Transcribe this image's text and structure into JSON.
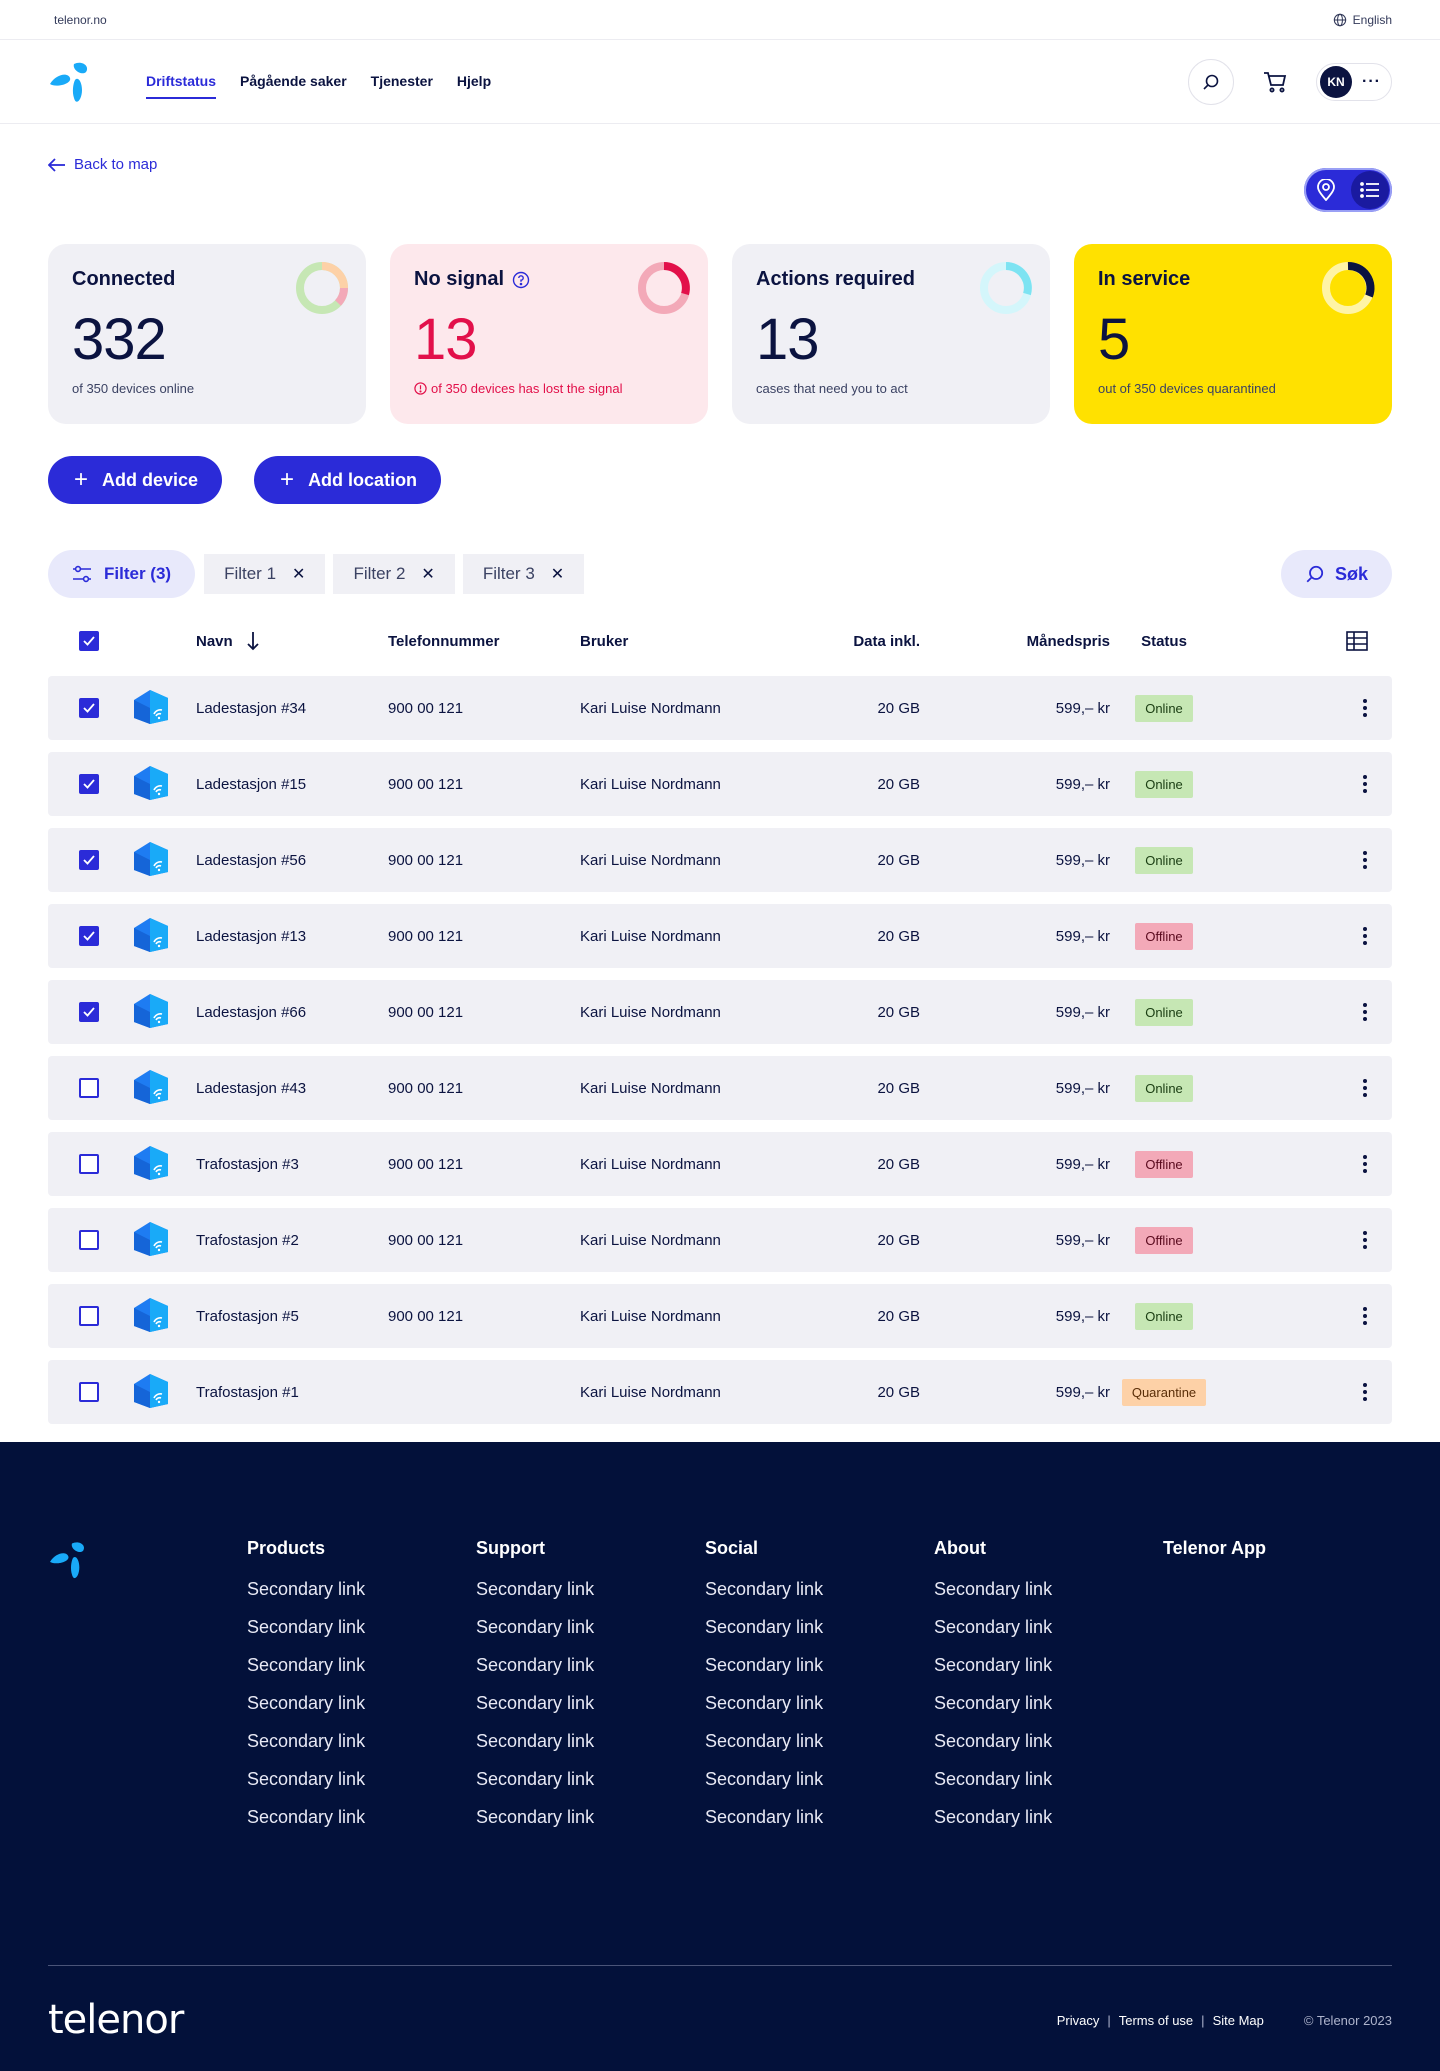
{
  "topbar": {
    "site": "telenor.no",
    "language": "English"
  },
  "nav": {
    "links": [
      "Driftstatus",
      "Pågående saker",
      "Tjenester",
      "Hjelp"
    ],
    "active_index": 0,
    "avatar_initials": "KN",
    "more": "···"
  },
  "back_link": "Back to map",
  "cards": [
    {
      "title": "Connected",
      "value": "332",
      "subtitle": "of 350 devices online",
      "ring": 0.95
    },
    {
      "title": "No signal",
      "value": "13",
      "subtitle": "of 350 devices has lost the signal",
      "ring": 0.3
    },
    {
      "title": "Actions required",
      "value": "13",
      "subtitle": "cases that need you to act",
      "ring": 0.3
    },
    {
      "title": "In service",
      "value": "5",
      "subtitle": "out of 350 devices quarantined",
      "ring": 0.4
    }
  ],
  "buttons": {
    "add_device": "Add device",
    "add_location": "Add location"
  },
  "filters": {
    "main": "Filter (3)",
    "chips": [
      "Filter 1",
      "Filter 2",
      "Filter 3"
    ],
    "search": "Søk"
  },
  "table": {
    "headers": {
      "name": "Navn",
      "phone": "Telefonnummer",
      "user": "Bruker",
      "data": "Data inkl.",
      "price": "Månedspris",
      "status": "Status"
    },
    "rows": [
      {
        "checked": true,
        "name": "Ladestasjon #34",
        "phone": "900 00 121",
        "user": "Kari Luise Nordmann",
        "data": "20 GB",
        "price": "599,– kr",
        "status": "Online"
      },
      {
        "checked": true,
        "name": "Ladestasjon #15",
        "phone": "900 00 121",
        "user": "Kari Luise Nordmann",
        "data": "20 GB",
        "price": "599,– kr",
        "status": "Online"
      },
      {
        "checked": true,
        "name": "Ladestasjon #56",
        "phone": "900 00 121",
        "user": "Kari Luise Nordmann",
        "data": "20 GB",
        "price": "599,– kr",
        "status": "Online"
      },
      {
        "checked": true,
        "name": "Ladestasjon #13",
        "phone": "900 00 121",
        "user": "Kari Luise Nordmann",
        "data": "20 GB",
        "price": "599,– kr",
        "status": "Offline"
      },
      {
        "checked": true,
        "name": "Ladestasjon #66",
        "phone": "900 00 121",
        "user": "Kari Luise Nordmann",
        "data": "20 GB",
        "price": "599,– kr",
        "status": "Online"
      },
      {
        "checked": false,
        "name": "Ladestasjon #43",
        "phone": "900 00 121",
        "user": "Kari Luise Nordmann",
        "data": "20 GB",
        "price": "599,– kr",
        "status": "Online"
      },
      {
        "checked": false,
        "name": "Trafostasjon #3",
        "phone": "900 00 121",
        "user": "Kari Luise Nordmann",
        "data": "20 GB",
        "price": "599,– kr",
        "status": "Offline"
      },
      {
        "checked": false,
        "name": "Trafostasjon #2",
        "phone": "900 00 121",
        "user": "Kari Luise Nordmann",
        "data": "20 GB",
        "price": "599,– kr",
        "status": "Offline"
      },
      {
        "checked": false,
        "name": "Trafostasjon #5",
        "phone": "900 00 121",
        "user": "Kari Luise Nordmann",
        "data": "20 GB",
        "price": "599,– kr",
        "status": "Online"
      },
      {
        "checked": false,
        "name": "Trafostasjon #1",
        "phone": "",
        "user": "Kari Luise Nordmann",
        "data": "20 GB",
        "price": "599,– kr",
        "status": "Quarantine"
      }
    ]
  },
  "footer": {
    "columns": [
      {
        "title": "Products",
        "links": [
          "Secondary link",
          "Secondary link",
          "Secondary link",
          "Secondary link",
          "Secondary link",
          "Secondary link",
          "Secondary link"
        ]
      },
      {
        "title": "Support",
        "links": [
          "Secondary link",
          "Secondary link",
          "Secondary link",
          "Secondary link",
          "Secondary link",
          "Secondary link",
          "Secondary link"
        ]
      },
      {
        "title": "Social",
        "links": [
          "Secondary link",
          "Secondary link",
          "Secondary link",
          "Secondary link",
          "Secondary link",
          "Secondary link",
          "Secondary link"
        ]
      },
      {
        "title": "About",
        "links": [
          "Secondary link",
          "Secondary link",
          "Secondary link",
          "Secondary link",
          "Secondary link",
          "Secondary link",
          "Secondary link"
        ]
      },
      {
        "title": "Telenor App",
        "links": []
      }
    ],
    "wordmark": "telenor",
    "legal": {
      "privacy": "Privacy",
      "terms": "Terms of use",
      "sitemap": "Site Map",
      "sep": "|",
      "copyright": "© Telenor 2023"
    }
  },
  "colors": {
    "primary": "#2b2bd8",
    "navy": "#03113a",
    "yellow": "#ffe100",
    "pink_bg": "#fde8ec",
    "error": "#e2104a",
    "logo": "#19aaf8"
  },
  "icons": {
    "globe": "globe-icon",
    "search": "search-icon",
    "cart": "cart-icon",
    "map_pin": "map-pin-icon",
    "list": "list-icon",
    "sliders": "sliders-icon",
    "house_wifi": "house-wifi-icon",
    "grid": "table-grid-icon"
  }
}
